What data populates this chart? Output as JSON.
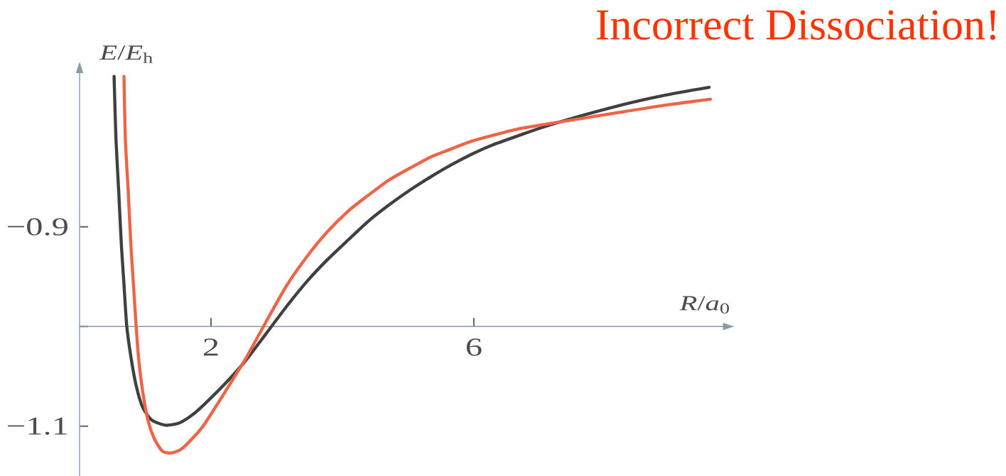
{
  "chart_data": {
    "type": "line",
    "title": "Incorrect Dissociation!",
    "xlabel": "*R*/*a*$_{0}$",
    "ylabel": "*E*/*E*$_{h}$",
    "xlim": [
      0,
      9.8
    ],
    "ylim": [
      -1.15,
      -0.745
    ],
    "xticks": [
      2,
      6
    ],
    "yticks": [
      {
        "value": -1.1,
        "label": "−1.1"
      },
      {
        "value": -1.0,
        "label": null
      },
      {
        "value": -0.9,
        "label": "−0.9"
      }
    ],
    "line_style": "solid",
    "series": [
      {
        "color": "#404040",
        "x": [
          0.525,
          0.553,
          0.595,
          0.636,
          0.676,
          0.717,
          0.78,
          0.86,
          0.96,
          1.1,
          1.31,
          1.51,
          1.71,
          1.9,
          2.22,
          2.53,
          2.84,
          3.16,
          3.47,
          3.77,
          4.09,
          4.4,
          4.71,
          5.03,
          5.34,
          5.65,
          5.97,
          6.28,
          6.66,
          7.19,
          8.23,
          8.9,
          9.58
        ],
        "values": [
          -0.749,
          -0.811,
          -0.864,
          -0.918,
          -0.958,
          -0.999,
          -1.03,
          -1.059,
          -1.081,
          -1.094,
          -1.099,
          -1.097,
          -1.089,
          -1.078,
          -1.057,
          -1.034,
          -1.007,
          -0.979,
          -0.954,
          -0.933,
          -0.913,
          -0.894,
          -0.878,
          -0.863,
          -0.85,
          -0.838,
          -0.827,
          -0.818,
          -0.809,
          -0.797,
          -0.778,
          -0.768,
          -0.76
        ]
      },
      {
        "color": "#EE6446",
        "x": [
          0.676,
          0.696,
          0.74,
          0.78,
          0.82,
          0.86,
          0.9,
          0.96,
          1.04,
          1.14,
          1.26,
          1.39,
          1.55,
          1.75,
          1.9,
          2.22,
          2.53,
          2.84,
          3.16,
          3.47,
          3.77,
          4.09,
          4.4,
          4.71,
          5.03,
          5.34,
          5.65,
          5.97,
          6.3,
          6.66,
          7.19,
          8.23,
          8.9,
          9.6
        ],
        "values": [
          -0.749,
          -0.811,
          -0.864,
          -0.917,
          -0.958,
          -0.999,
          -1.033,
          -1.065,
          -1.094,
          -1.113,
          -1.125,
          -1.127,
          -1.123,
          -1.11,
          -1.098,
          -1.065,
          -1.032,
          -0.995,
          -0.958,
          -0.929,
          -0.905,
          -0.884,
          -0.868,
          -0.853,
          -0.841,
          -0.83,
          -0.822,
          -0.814,
          -0.808,
          -0.802,
          -0.796,
          -0.785,
          -0.778,
          -0.772
        ]
      }
    ]
  }
}
